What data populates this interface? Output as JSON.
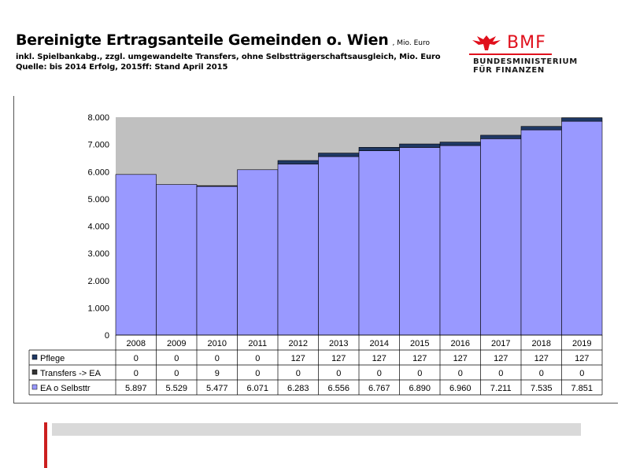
{
  "header": {
    "title": "Bereinigte Ertragsanteile Gemeinden o. Wien",
    "unit": ", Mio. Euro",
    "subtitle1": "inkl. Spielbankabg., zzgl. umgewandelte Transfers, ohne Selbstträgerschaftsausgleich, Mio. Euro",
    "subtitle2": "Quelle: bis 2014 Erfolg, 2015ff: Stand April 2015"
  },
  "logo": {
    "mark": "BMF",
    "line1": "BUNDESMINISTERIUM",
    "line2": "FÜR FINANZEN",
    "icon": "eagle-icon"
  },
  "colors": {
    "plot_bg": "#c0c0c0",
    "ea": "#9999ff",
    "transfers": "#333333",
    "pflege": "#1f3864",
    "brand_red": "#e0101c"
  },
  "chart_data": {
    "type": "bar",
    "stacked": true,
    "categories": [
      "2008",
      "2009",
      "2010",
      "2011",
      "2012",
      "2013",
      "2014",
      "2015",
      "2016",
      "2017",
      "2018",
      "2019"
    ],
    "series": [
      {
        "name": "EA o Selbsttr",
        "values": [
          5897,
          5529,
          5477,
          6071,
          6283,
          6556,
          6767,
          6890,
          6960,
          7211,
          7535,
          7851
        ],
        "labels": [
          "5.897",
          "5.529",
          "5.477",
          "6.071",
          "6.283",
          "6.556",
          "6.767",
          "6.890",
          "6.960",
          "7.211",
          "7.535",
          "7.851"
        ]
      },
      {
        "name": "Transfers -> EA",
        "values": [
          0,
          0,
          9,
          0,
          0,
          0,
          0,
          0,
          0,
          0,
          0,
          0
        ],
        "labels": [
          "0",
          "0",
          "9",
          "0",
          "0",
          "0",
          "0",
          "0",
          "0",
          "0",
          "0",
          "0"
        ]
      },
      {
        "name": "Pflege",
        "values": [
          0,
          0,
          0,
          0,
          127,
          127,
          127,
          127,
          127,
          127,
          127,
          127
        ],
        "labels": [
          "0",
          "0",
          "0",
          "0",
          "127",
          "127",
          "127",
          "127",
          "127",
          "127",
          "127",
          "127"
        ]
      }
    ],
    "yticks": [
      "0",
      "1.000",
      "2.000",
      "3.000",
      "4.000",
      "5.000",
      "6.000",
      "7.000",
      "8.000"
    ],
    "ylim": [
      0,
      8000
    ],
    "grid": false,
    "legend": "data-table"
  }
}
